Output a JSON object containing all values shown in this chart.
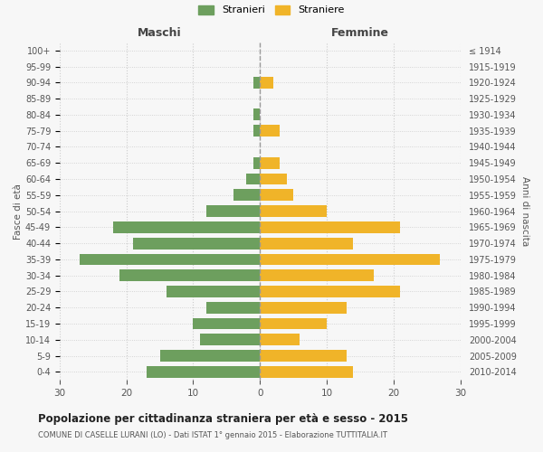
{
  "age_groups": [
    "100+",
    "95-99",
    "90-94",
    "85-89",
    "80-84",
    "75-79",
    "70-74",
    "65-69",
    "60-64",
    "55-59",
    "50-54",
    "45-49",
    "40-44",
    "35-39",
    "30-34",
    "25-29",
    "20-24",
    "15-19",
    "10-14",
    "5-9",
    "0-4"
  ],
  "birth_years": [
    "≤ 1914",
    "1915-1919",
    "1920-1924",
    "1925-1929",
    "1930-1934",
    "1935-1939",
    "1940-1944",
    "1945-1949",
    "1950-1954",
    "1955-1959",
    "1960-1964",
    "1965-1969",
    "1970-1974",
    "1975-1979",
    "1980-1984",
    "1985-1989",
    "1990-1994",
    "1995-1999",
    "2000-2004",
    "2005-2009",
    "2010-2014"
  ],
  "males": [
    0,
    0,
    1,
    0,
    1,
    1,
    0,
    1,
    2,
    4,
    8,
    22,
    19,
    27,
    21,
    14,
    8,
    10,
    9,
    15,
    17
  ],
  "females": [
    0,
    0,
    2,
    0,
    0,
    3,
    0,
    3,
    4,
    5,
    10,
    21,
    14,
    27,
    17,
    21,
    13,
    10,
    6,
    13,
    14
  ],
  "male_color": "#6d9f5e",
  "female_color": "#f0b429",
  "background_color": "#f7f7f7",
  "grid_color": "#cccccc",
  "title": "Popolazione per cittadinanza straniera per età e sesso - 2015",
  "subtitle": "COMUNE DI CASELLE LURANI (LO) - Dati ISTAT 1° gennaio 2015 - Elaborazione TUTTITALIA.IT",
  "xlabel_left": "Maschi",
  "xlabel_right": "Femmine",
  "ylabel_left": "Fasce di età",
  "ylabel_right": "Anni di nascita",
  "xlim": 30,
  "legend_labels": [
    "Stranieri",
    "Straniere"
  ],
  "bar_height": 0.72
}
